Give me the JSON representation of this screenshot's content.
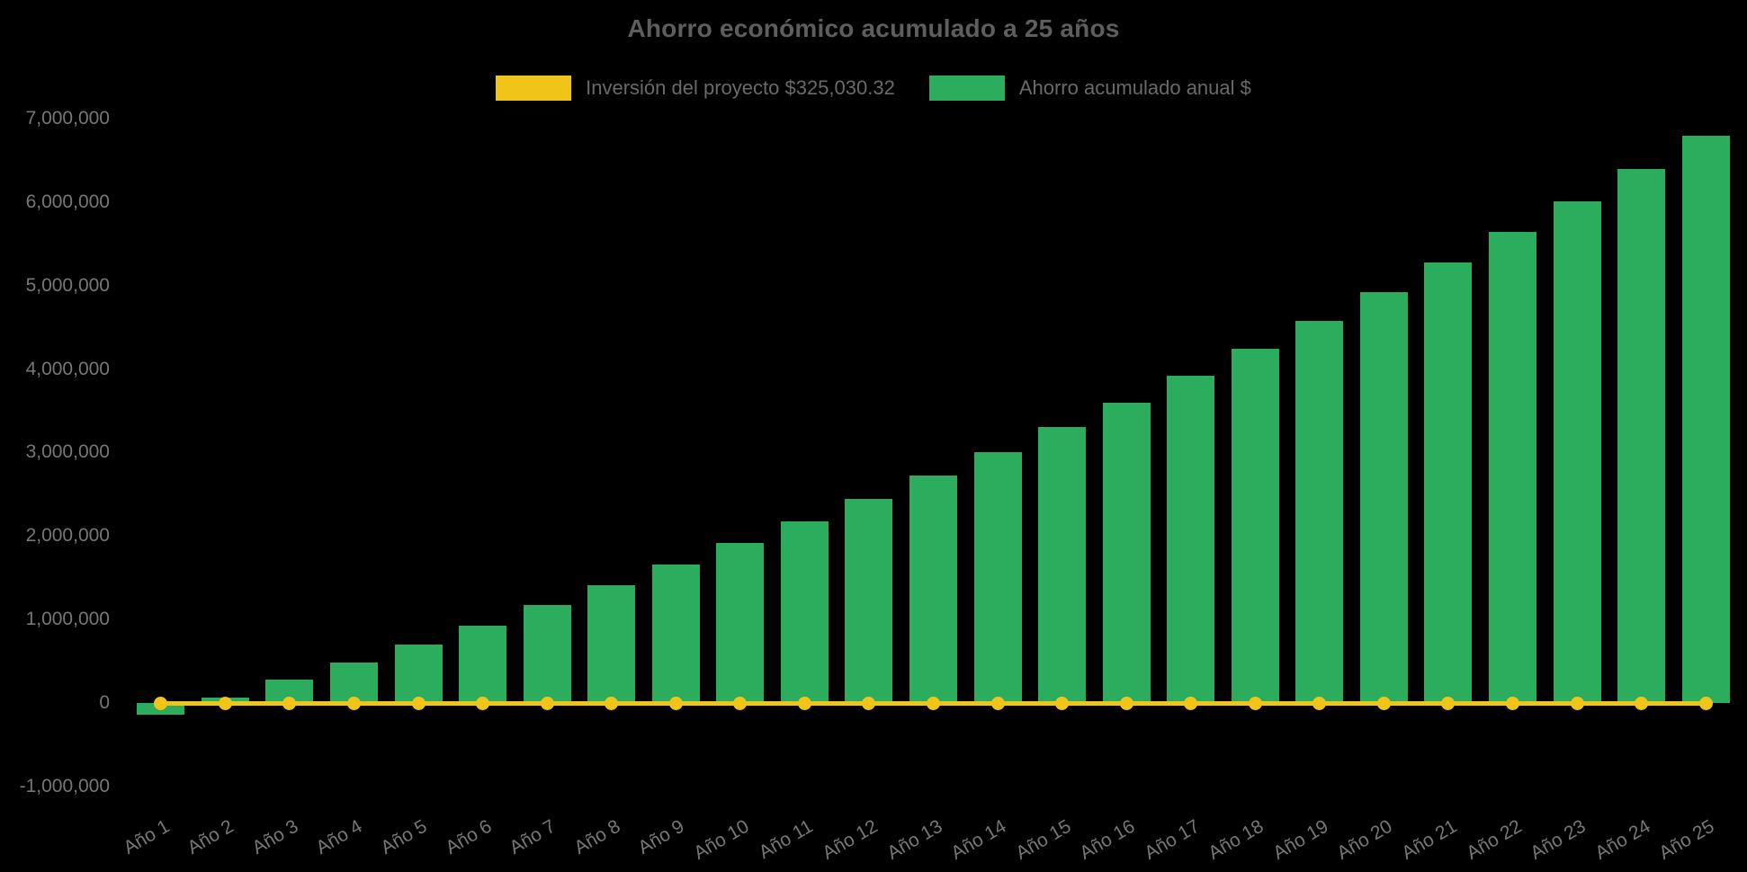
{
  "page": {
    "background": "#000000"
  },
  "header": {
    "title": "Ahorro económico acumulado a 25 años"
  },
  "legend": {
    "items": [
      {
        "label": "Inversión del proyecto $325,030.32",
        "color": "#F0C419"
      },
      {
        "label": "Ahorro acumulado anual $",
        "color": "#2BAD5D"
      }
    ]
  },
  "colors": {
    "background": "#000000",
    "bar_green": "#2BAD5D",
    "line_yellow": "#F0C419",
    "title_text": "#5e5e5e",
    "axis_tick_text": "#777777",
    "legend_text": "#6a6a6a"
  },
  "chart_data": {
    "type": "bar",
    "title": "Ahorro económico acumulado a 25 años",
    "categories": [
      "Año 1",
      "Año 2",
      "Año 3",
      "Año 4",
      "Año 5",
      "Año 6",
      "Año 7",
      "Año 8",
      "Año 9",
      "Año 10",
      "Año 11",
      "Año 12",
      "Año 13",
      "Año 14",
      "Año 15",
      "Año 16",
      "Año 17",
      "Año 18",
      "Año 19",
      "Año 20",
      "Año 21",
      "Año 22",
      "Año 23",
      "Año 24",
      "Año 25"
    ],
    "series": [
      {
        "name": "Inversión del proyecto $325,030.32",
        "type": "line",
        "color": "#F0C419",
        "marker": "circle",
        "values": [
          0,
          0,
          0,
          0,
          0,
          0,
          0,
          0,
          0,
          0,
          0,
          0,
          0,
          0,
          0,
          0,
          0,
          0,
          0,
          0,
          0,
          0,
          0,
          0,
          0
        ]
      },
      {
        "name": "Ahorro acumulado anual $",
        "type": "bar",
        "color": "#2BAD5D",
        "values": [
          -140000,
          70000,
          280000,
          490000,
          700000,
          930000,
          1170000,
          1410000,
          1660000,
          1920000,
          2180000,
          2450000,
          2720000,
          3010000,
          3310000,
          3600000,
          3920000,
          4240000,
          4580000,
          4920000,
          5280000,
          5640000,
          6010000,
          6400000,
          6800000
        ]
      }
    ],
    "xlabel": "",
    "ylabel": "",
    "ylim": [
      -1000000,
      7000000
    ],
    "yticks": [
      7000000,
      6000000,
      5000000,
      4000000,
      3000000,
      2000000,
      1000000,
      0,
      -1000000
    ],
    "grid": false,
    "legend_position": "top",
    "x_tick_rotation_deg": -30
  }
}
